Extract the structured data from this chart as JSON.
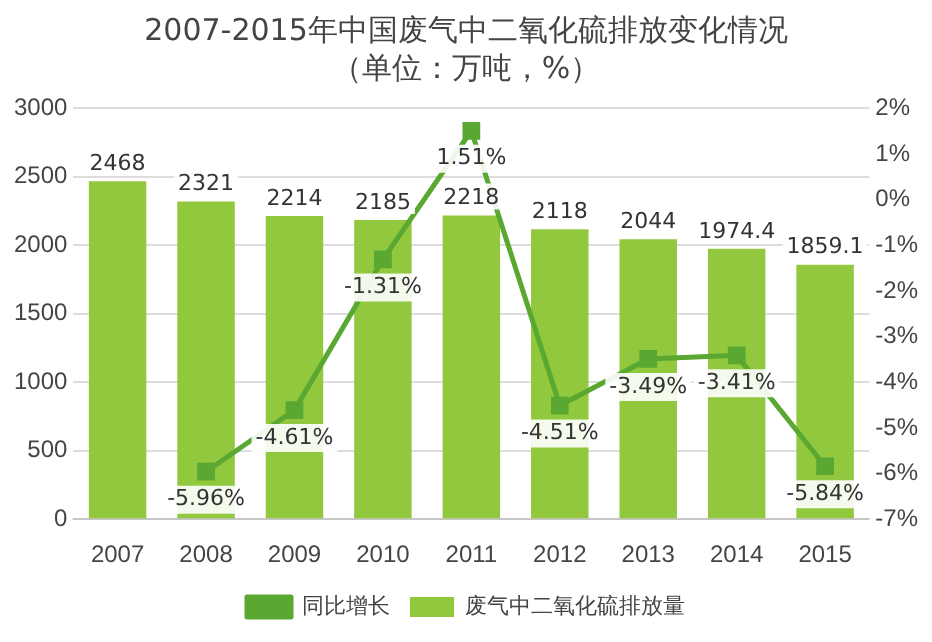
{
  "chart_data": {
    "type": "bar",
    "title": "2007-2015年中国废气中二氧化硫排放变化情况",
    "subtitle": "（单位：万吨，%）",
    "categories": [
      "2007",
      "2008",
      "2009",
      "2010",
      "2011",
      "2012",
      "2013",
      "2014",
      "2015"
    ],
    "series": [
      {
        "name": "废气中二氧化硫排放量",
        "color": "#92c83e",
        "values": [
          2468,
          2321,
          2214,
          2185,
          2218,
          2118,
          2044,
          1974.4,
          1859.1
        ],
        "value_labels": [
          "2468",
          "2321",
          "2214",
          "2185",
          "2218",
          "2118",
          "2044",
          "1974.4",
          "1859.1"
        ]
      },
      {
        "name": "同比增长",
        "type": "line",
        "axis": "y2",
        "color": "#5aa832",
        "marker": "square",
        "values": [
          null,
          -5.96,
          -4.61,
          -1.31,
          1.51,
          -4.51,
          -3.49,
          -3.41,
          -5.84
        ],
        "value_labels": [
          null,
          "-5.96%",
          "-4.61%",
          "-1.31%",
          "1.51%",
          "-4.51%",
          "-3.49%",
          "-3.41%",
          "-5.84%"
        ]
      }
    ],
    "ylim": [
      0,
      3000
    ],
    "yticks": [
      0,
      500,
      1000,
      1500,
      2000,
      2500,
      3000
    ],
    "y2lim": [
      -7,
      2
    ],
    "y2ticks": [
      {
        "value": -7,
        "label": "-7%"
      },
      {
        "value": -6,
        "label": "-6%"
      },
      {
        "value": -5,
        "label": "-5%"
      },
      {
        "value": -4,
        "label": "-4%"
      },
      {
        "value": -3,
        "label": "-3%"
      },
      {
        "value": -2,
        "label": "-2%"
      },
      {
        "value": -1,
        "label": "-1%"
      },
      {
        "value": 0,
        "label": "0%"
      },
      {
        "value": 1,
        "label": "1%"
      },
      {
        "value": 2,
        "label": "2%"
      }
    ],
    "grid": "y",
    "legend": "bottom"
  }
}
